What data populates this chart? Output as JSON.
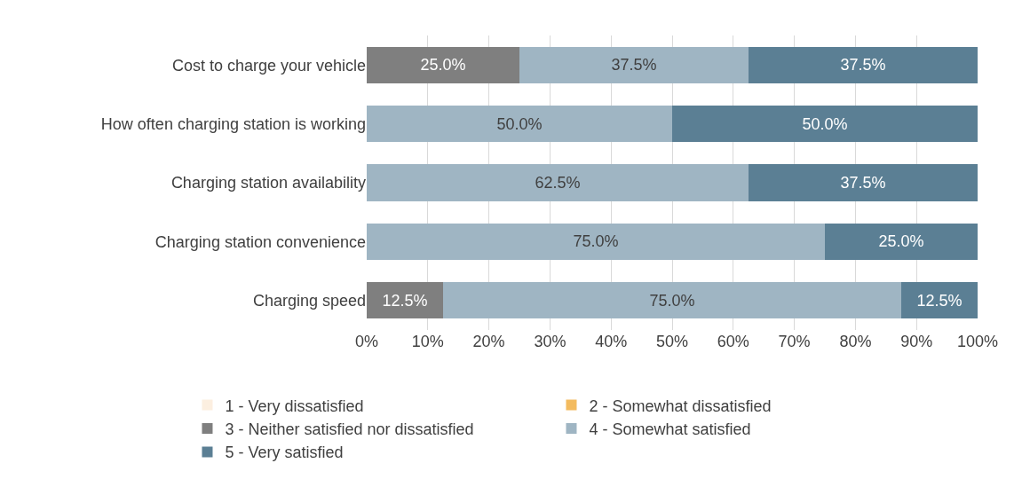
{
  "chart_data": {
    "type": "bar",
    "orientation": "horizontal",
    "stacked": true,
    "categories": [
      "Cost to charge your vehicle",
      "How often charging station is working",
      "Charging station availability",
      "Charging station convenience",
      "Charging speed"
    ],
    "series": [
      {
        "name": "1 - Very dissatisfied",
        "color": "#fcefe0",
        "values": [
          0,
          0,
          0,
          0,
          0
        ],
        "value_labels": [
          null,
          null,
          null,
          null,
          null
        ]
      },
      {
        "name": "2 - Somewhat dissatisfied",
        "color": "#f3bb5f",
        "values": [
          0,
          0,
          0,
          0,
          0
        ],
        "value_labels": [
          null,
          null,
          null,
          null,
          null
        ]
      },
      {
        "name": "3 - Neither satisfied nor dissatisfied",
        "color": "#7f7f7f",
        "values": [
          25.0,
          0,
          0,
          0,
          12.5
        ],
        "value_labels": [
          "25.0%",
          null,
          null,
          null,
          "12.5%"
        ]
      },
      {
        "name": "4 - Somewhat satisfied",
        "color": "#9fb5c3",
        "values": [
          37.5,
          50.0,
          62.5,
          75.0,
          75.0
        ],
        "value_labels": [
          "37.5%",
          "50.0%",
          "62.5%",
          "75.0%",
          "75.0%"
        ]
      },
      {
        "name": "5 - Very satisfied",
        "color": "#5b7f94",
        "values": [
          37.5,
          50.0,
          37.5,
          25.0,
          12.5
        ],
        "value_labels": [
          "37.5%",
          "50.0%",
          "37.5%",
          "25.0%",
          "12.5%"
        ]
      }
    ],
    "xlim": [
      0,
      100
    ],
    "xticks": [
      {
        "value": 0,
        "label": "0%"
      },
      {
        "value": 10,
        "label": "10%"
      },
      {
        "value": 20,
        "label": "20%"
      },
      {
        "value": 30,
        "label": "30%"
      },
      {
        "value": 40,
        "label": "40%"
      },
      {
        "value": 50,
        "label": "50%"
      },
      {
        "value": 60,
        "label": "60%"
      },
      {
        "value": 70,
        "label": "70%"
      },
      {
        "value": 80,
        "label": "80%"
      },
      {
        "value": 90,
        "label": "90%"
      },
      {
        "value": 100,
        "label": "100%"
      }
    ],
    "grid": "x",
    "legend": "bottom"
  }
}
